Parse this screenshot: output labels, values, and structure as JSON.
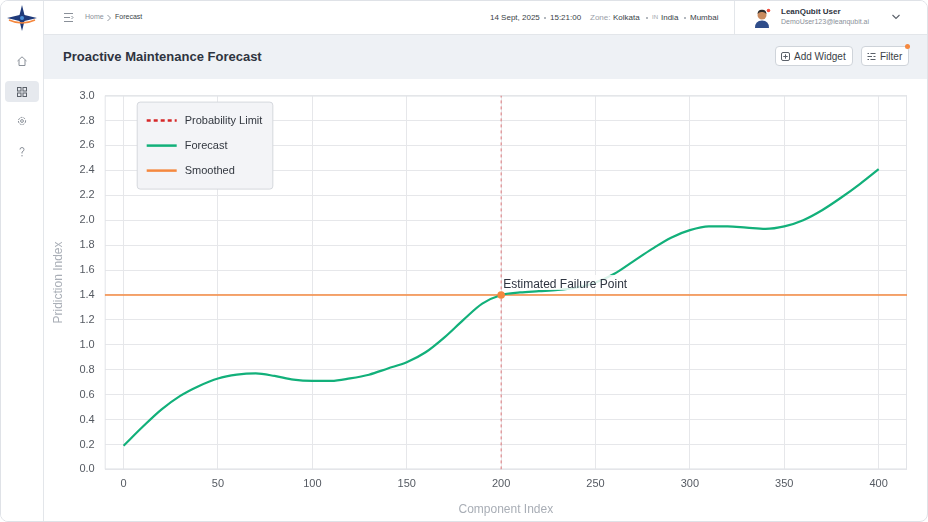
{
  "header": {
    "breadcrumb": [
      "Home",
      "Forecast"
    ],
    "date": "14 Sept, 2025",
    "time": "15:21:00",
    "zone_label": "Zone:",
    "zone": "Kolkata",
    "country_code": "IN",
    "country": "India",
    "city": "Mumbai",
    "user_name": "LeanQubit User",
    "user_email": "DemoUser123@leanqubit.ai"
  },
  "page": {
    "title": "Proactive Maintenance Forecast",
    "buttons": [
      "Add Widget",
      "Filter"
    ]
  },
  "chart_data": {
    "type": "line",
    "x_label": "Component Index",
    "y_label": "Pridiction Index",
    "xlim": [
      -10,
      415
    ],
    "xticks": [
      0,
      50,
      100,
      150,
      200,
      250,
      300,
      350,
      400
    ],
    "ylim": [
      0,
      3.0
    ],
    "yticks": [
      {
        "value": 0,
        "label": "0.0"
      },
      0.2,
      0.4,
      0.6,
      0.8,
      {
        "value": 1,
        "label": "1.0"
      },
      1.2,
      1.4,
      1.6,
      1.8,
      {
        "value": 2,
        "label": "2.0"
      },
      2.2,
      2.4,
      2.6,
      2.8,
      {
        "value": 3,
        "label": "3.0"
      }
    ],
    "grid": true,
    "legend": "upper left",
    "series": [
      {
        "name": "Probability Limit",
        "color": "#d62728",
        "line_style": "dashed",
        "x": [
          200,
          200
        ],
        "values": [
          0,
          3.0
        ]
      },
      {
        "name": "Forecast",
        "color": "#12b07a",
        "line_style": "solid",
        "x": [
          0,
          10,
          20,
          30,
          40,
          50,
          60,
          70,
          80,
          90,
          100,
          110,
          120,
          130,
          140,
          150,
          160,
          170,
          180,
          190,
          200,
          210,
          220,
          230,
          240,
          250,
          260,
          270,
          280,
          290,
          300,
          310,
          320,
          330,
          340,
          350,
          360,
          370,
          380,
          390,
          400
        ],
        "values": [
          0.19,
          0.34,
          0.48,
          0.59,
          0.67,
          0.73,
          0.76,
          0.77,
          0.75,
          0.72,
          0.71,
          0.71,
          0.73,
          0.76,
          0.81,
          0.86,
          0.94,
          1.06,
          1.2,
          1.33,
          1.4,
          1.42,
          1.43,
          1.44,
          1.46,
          1.5,
          1.57,
          1.67,
          1.77,
          1.86,
          1.92,
          1.95,
          1.95,
          1.94,
          1.93,
          1.95,
          2.0,
          2.08,
          2.18,
          2.29,
          2.41
        ]
      },
      {
        "name": "Smoothed",
        "color": "#f5883f",
        "line_style": "solid",
        "x": [
          -10,
          415
        ],
        "values": [
          1.4,
          1.4
        ]
      }
    ],
    "annotations": [
      {
        "text": "Estimated Failure Point",
        "x": 200,
        "y": 1.4,
        "color": "#f5883f",
        "marker": "circle"
      }
    ]
  }
}
